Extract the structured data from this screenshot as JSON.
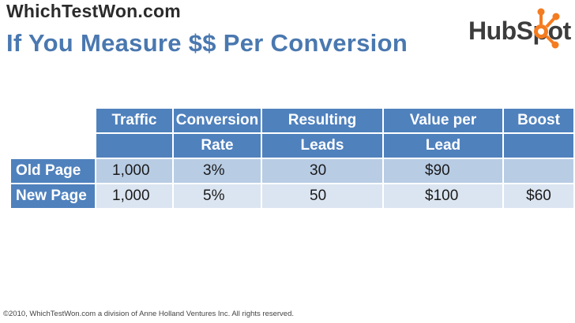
{
  "header": {
    "site_name": "WhichTestWon.com",
    "title": "If You Measure $$ Per Conversion",
    "logo_text": "HubSpot"
  },
  "table": {
    "header_row1": [
      "",
      "Traffic",
      "Conversion",
      "Resulting",
      "Value per",
      "Boost"
    ],
    "header_row2": [
      "",
      "",
      "Rate",
      "Leads",
      "Lead",
      ""
    ],
    "rows": [
      {
        "label": "Old Page",
        "traffic": "1,000",
        "conversion_rate": "3%",
        "leads": "30",
        "value_per_lead": "$90",
        "boost": ""
      },
      {
        "label": "New Page",
        "traffic": "1,000",
        "conversion_rate": "5%",
        "leads": "50",
        "value_per_lead": "$100",
        "boost": "$60"
      }
    ]
  },
  "footer": {
    "copyright": "©2010, WhichTestWon.com a division of Anne Holland Ventures Inc.  All rights reserved."
  },
  "colors": {
    "header_blue": "#4f81bd",
    "row_dark": "#b8cce4",
    "row_light": "#dbe5f1",
    "title_blue": "#4a78b0",
    "logo_orange": "#f47c20"
  }
}
